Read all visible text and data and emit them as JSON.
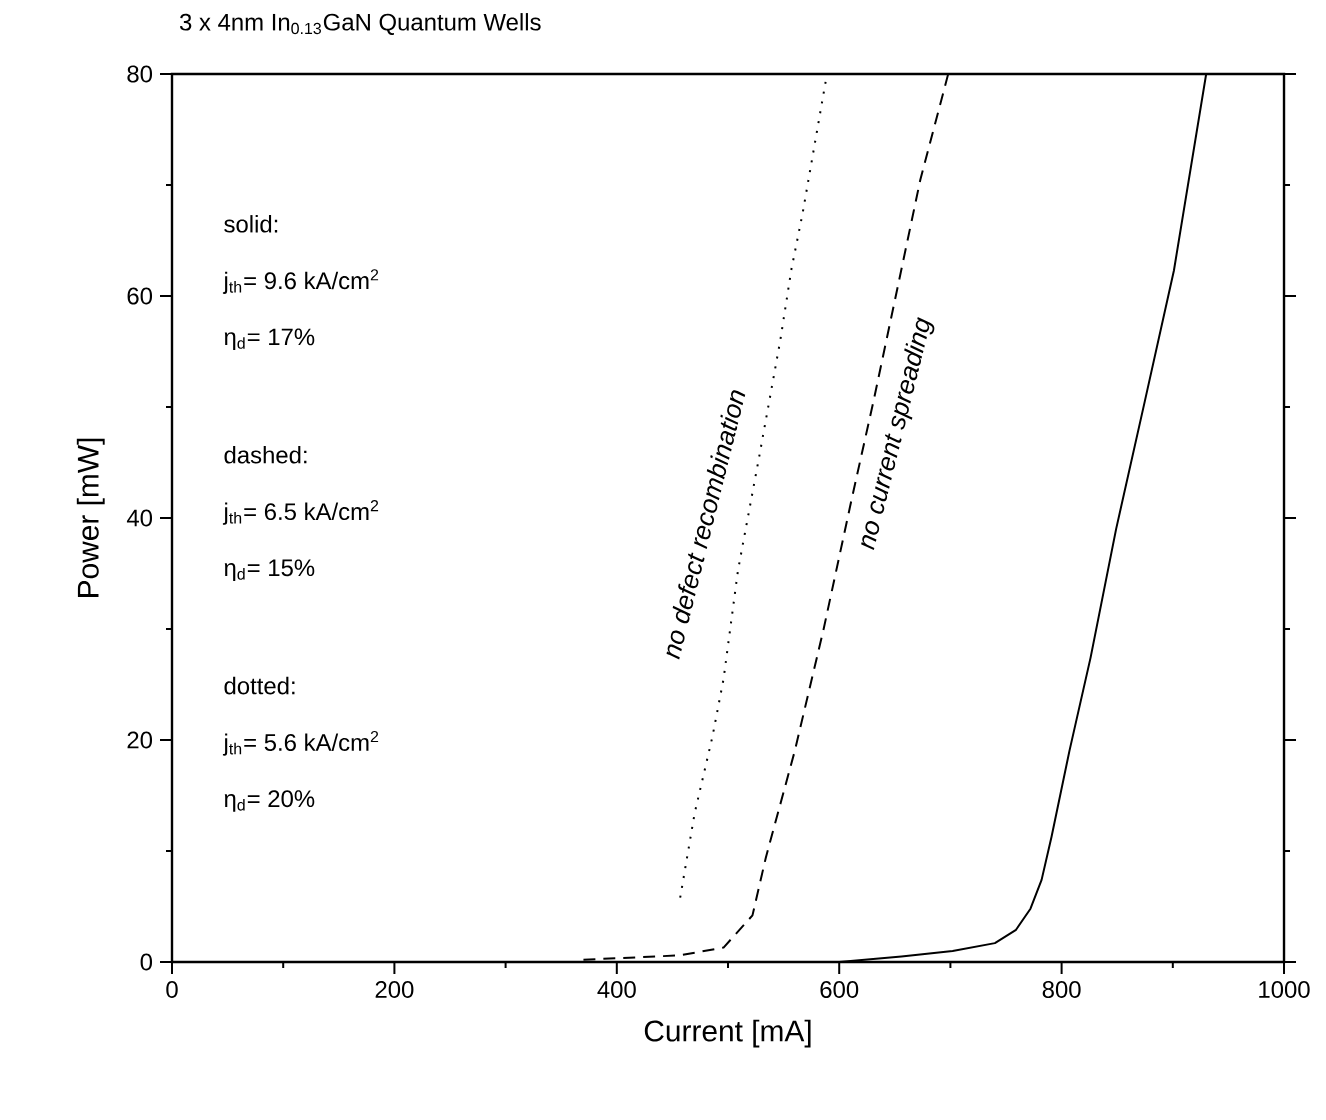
{
  "chart_data": {
    "type": "line",
    "title": "3 x 4nm In$_{0.13}$GaN Quantum Wells",
    "xlabel": "Current [mA]",
    "ylabel": "Power [mW]",
    "xlim": [
      0,
      1000
    ],
    "ylim": [
      0,
      80
    ],
    "xticks": [
      0,
      200,
      400,
      600,
      800,
      1000
    ],
    "yticks": [
      0,
      20,
      40,
      60,
      80
    ],
    "grid": false,
    "marker": "none",
    "series": [
      {
        "color": "#000000",
        "line_style": "solid",
        "x": [
          600,
          656,
          702,
          740,
          759,
          772,
          782,
          791,
          807,
          826,
          849,
          875,
          901,
          930
        ],
        "values": [
          0,
          0.5,
          1,
          1.7,
          2.9,
          4.8,
          7.4,
          11.3,
          19,
          27.4,
          39,
          50.6,
          62.3,
          80
        ]
      },
      {
        "color": "#000000",
        "line_style": "dashed",
        "x": [
          370,
          457,
          496,
          522,
          534,
          560,
          586,
          611,
          631,
          653,
          673,
          698
        ],
        "values": [
          0.2,
          0.6,
          1.3,
          4.2,
          9.4,
          19,
          30,
          41.6,
          50.6,
          61,
          70.5,
          80
        ]
      },
      {
        "color": "#000000",
        "line_style": "dotted",
        "x": [
          457,
          470,
          486,
          496,
          509,
          528,
          547,
          557,
          567,
          589
        ],
        "values": [
          5.8,
          13.4,
          20.3,
          25.5,
          35.3,
          45.5,
          56,
          62.4,
          67.4,
          80
        ]
      }
    ],
    "annotations": [
      "solid:",
      "j$_{th}$= 9.6 kA/cm$^{2}$",
      "η$_{d}$= 17%",
      "dashed:",
      "j$_{th}$= 6.5 kA/cm$^{2}$",
      "η$_{d}$= 15%",
      "dotted:",
      "j$_{th}$= 5.6 kA/cm$^{2}$",
      "η$_{d}$= 20%",
      "no defect recombination",
      "no current spreading"
    ]
  }
}
